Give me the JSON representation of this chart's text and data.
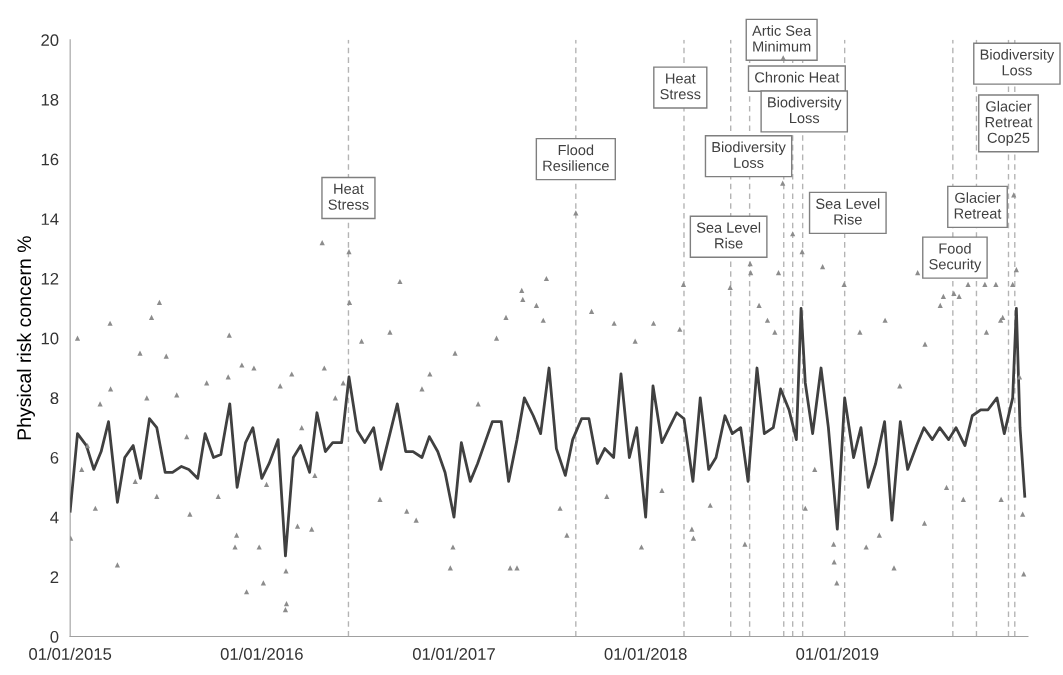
{
  "chart_data": {
    "type": "line",
    "ylabel": "Physical risk concern %",
    "xlim": [
      "2015-01-01",
      "2019-12-30"
    ],
    "xticks": [
      {
        "value": "2015-01-01",
        "label": "01/01/2015"
      },
      {
        "value": "2016-01-01",
        "label": "01/01/2016"
      },
      {
        "value": "2017-01-01",
        "label": "01/01/2017"
      },
      {
        "value": "2018-01-01",
        "label": "01/01/2018"
      },
      {
        "value": "2019-01-01",
        "label": "01/01/2019"
      }
    ],
    "ylim": [
      0,
      20
    ],
    "yticks": [
      0,
      2,
      4,
      6,
      8,
      10,
      12,
      14,
      16,
      18,
      20
    ],
    "grid": false,
    "legend": false,
    "series": [
      {
        "type": "scatter",
        "marker": "triangle",
        "color": "#8c8c8c",
        "x": [
          "2015-01-02",
          "2015-01-15",
          "2015-03-18",
          "2015-04-01",
          "2015-06-05",
          "2015-06-20",
          "2015-07-03",
          "2015-05-14",
          "2015-02-18",
          "2015-08-17",
          "2015-09-18",
          "2015-10-31",
          "2015-10-29",
          "2015-11-24",
          "2015-12-17",
          "2015-11-11",
          "2015-11-14",
          "2015-12-03",
          "2015-12-27",
          "2016-01-04",
          "2016-02-16",
          "2016-02-15",
          "2016-02-17",
          "2016-02-27",
          "2016-03-09",
          "2016-04-05",
          "2016-04-29",
          "2016-06-04",
          "2016-06-16",
          "2016-04-25",
          "2016-06-15",
          "2016-09-20",
          "2017-05-10",
          "2017-05-12",
          "2017-06-07",
          "2017-06-26",
          "2017-08-21",
          "2016-09-01",
          "2016-07-09",
          "2016-10-21",
          "2016-12-25",
          "2016-12-30",
          "2017-04-18",
          "2017-05-01",
          "2017-04-10",
          "2017-06-20",
          "2017-08-04",
          "2017-09-20",
          "2017-11-02",
          "2017-12-24",
          "2018-01-16",
          "2018-03-07",
          "2018-03-14",
          "2018-03-30",
          "2018-04-02",
          "2016-11-01",
          "2017-01-03",
          "2017-03-23",
          "2018-06-11",
          "2018-08-05",
          "2018-08-21",
          "2018-07-09",
          "2018-09-04",
          "2018-09-11",
          "2018-09-19",
          "2018-09-20",
          "2018-10-08",
          "2018-10-26",
          "2018-07-19",
          "2018-07-20",
          "2018-12-04",
          "2019-01-14",
          "2019-06-03",
          "2019-08-11",
          "2019-08-21",
          "2019-09-07",
          "2019-10-09",
          "2019-10-30",
          "2019-12-03",
          "2019-12-08",
          "2019-12-01",
          "2018-12-31",
          "2018-12-26",
          "2018-12-25",
          "2019-02-25",
          "2019-04-19",
          "2019-03-22",
          "2019-06-16",
          "2019-12-22",
          "2019-12-20",
          "2019-04-02",
          "2019-02-13",
          "2019-07-16",
          "2019-07-22",
          "2019-11-08",
          "2019-11-12",
          "2019-10-12",
          "2019-12-14",
          "2019-06-17",
          "2015-01-23",
          "2015-02-03",
          "2015-02-27",
          "2015-03-19",
          "2015-05-05",
          "2015-05-27",
          "2015-06-15",
          "2015-07-23",
          "2015-08-11",
          "2015-10-10",
          "2016-01-10",
          "2016-02-05",
          "2016-03-17",
          "2016-04-11",
          "2016-05-20",
          "2016-08-13",
          "2016-11-16",
          "2016-10-03",
          "2017-02-16",
          "2017-07-22",
          "2017-10-19",
          "2017-12-12",
          "2018-02-01",
          "2018-05-04",
          "2018-11-01",
          "2018-11-19",
          "2019-04-30",
          "2019-07-28",
          "2019-08-29",
          "2019-11-09"
        ],
        "values": [
          3.3,
          10.0,
          10.5,
          2.4,
          10.7,
          11.2,
          9.4,
          9.5,
          4.3,
          4.1,
          8.5,
          10.1,
          8.7,
          9.1,
          9.0,
          3.0,
          3.4,
          1.5,
          3.0,
          1.8,
          2.2,
          0.9,
          1.1,
          8.8,
          3.7,
          3.6,
          9.0,
          8.5,
          11.2,
          13.2,
          12.9,
          11.9,
          11.6,
          11.3,
          11.1,
          12.0,
          14.2,
          10.2,
          9.9,
          3.9,
          2.3,
          3.0,
          2.3,
          2.3,
          10.7,
          10.6,
          3.4,
          10.9,
          10.5,
          3.0,
          10.5,
          10.3,
          11.8,
          3.6,
          3.3,
          8.3,
          9.5,
          10.0,
          11.7,
          11.1,
          10.6,
          3.1,
          10.2,
          12.2,
          15.2,
          19.4,
          13.5,
          12.9,
          12.5,
          12.2,
          12.4,
          11.8,
          12.2,
          11.5,
          11.4,
          11.8,
          11.8,
          11.8,
          14.8,
          12.3,
          11.8,
          1.8,
          2.5,
          3.1,
          3.0,
          2.3,
          3.4,
          3.8,
          2.1,
          4.1,
          10.6,
          10.2,
          11.1,
          11.4,
          10.6,
          10.7,
          10.2,
          8.7,
          9.8,
          5.6,
          6.4,
          7.8,
          8.3,
          5.2,
          8.0,
          4.7,
          8.1,
          6.7,
          4.7,
          5.1,
          8.4,
          7.0,
          5.4,
          8.0,
          4.6,
          8.8,
          4.2,
          7.8,
          4.3,
          4.7,
          9.9,
          4.9,
          4.4,
          4.3,
          5.6,
          8.4,
          5.0,
          4.6,
          4.6
        ]
      },
      {
        "marker": "none",
        "line_style": "solid",
        "color": "#404040",
        "x": [
          "2015-01-01",
          "2015-01-15",
          "2015-02-01",
          "2015-02-15",
          "2015-03-01",
          "2015-03-15",
          "2015-04-01",
          "2015-04-15",
          "2015-05-01",
          "2015-05-15",
          "2015-06-01",
          "2015-06-15",
          "2015-07-01",
          "2015-07-15",
          "2015-08-01",
          "2015-08-15",
          "2015-09-01",
          "2015-09-15",
          "2015-10-01",
          "2015-10-15",
          "2015-11-01",
          "2015-11-15",
          "2015-12-01",
          "2015-12-15",
          "2016-01-01",
          "2016-01-15",
          "2016-02-01",
          "2016-02-15",
          "2016-03-01",
          "2016-03-15",
          "2016-04-01",
          "2016-04-15",
          "2016-05-01",
          "2016-05-15",
          "2016-06-01",
          "2016-06-15",
          "2016-07-01",
          "2016-07-15",
          "2016-08-01",
          "2016-08-15",
          "2016-09-01",
          "2016-09-15",
          "2016-10-01",
          "2016-10-15",
          "2016-11-01",
          "2016-11-15",
          "2016-12-01",
          "2016-12-15",
          "2017-01-01",
          "2017-01-15",
          "2017-02-01",
          "2017-02-15",
          "2017-03-01",
          "2017-03-15",
          "2017-04-01",
          "2017-04-15",
          "2017-05-01",
          "2017-05-15",
          "2017-06-01",
          "2017-06-15",
          "2017-07-01",
          "2017-07-15",
          "2017-08-01",
          "2017-08-15",
          "2017-09-01",
          "2017-09-15",
          "2017-10-01",
          "2017-10-15",
          "2017-11-01",
          "2017-11-15",
          "2017-12-01",
          "2017-12-15",
          "2018-01-01",
          "2018-01-15",
          "2018-02-01",
          "2018-02-15",
          "2018-03-01",
          "2018-03-15",
          "2018-04-01",
          "2018-04-15",
          "2018-05-01",
          "2018-05-15",
          "2018-06-01",
          "2018-06-15",
          "2018-07-01",
          "2018-07-15",
          "2018-08-01",
          "2018-08-15",
          "2018-09-01",
          "2018-09-15",
          "2018-10-01",
          "2018-10-15",
          "2018-10-24",
          "2018-11-01",
          "2018-11-15",
          "2018-12-01",
          "2018-12-15",
          "2019-01-01",
          "2019-01-15",
          "2019-02-01",
          "2019-02-15",
          "2019-03-01",
          "2019-03-15",
          "2019-04-01",
          "2019-04-15",
          "2019-05-01",
          "2019-05-15",
          "2019-06-01",
          "2019-06-15",
          "2019-07-01",
          "2019-07-15",
          "2019-08-01",
          "2019-08-15",
          "2019-09-01",
          "2019-09-15",
          "2019-10-01",
          "2019-10-15",
          "2019-11-01",
          "2019-11-15",
          "2019-12-01",
          "2019-12-08",
          "2019-12-15",
          "2019-12-24"
        ],
        "values": [
          4.2,
          6.8,
          6.4,
          5.6,
          6.2,
          7.2,
          4.5,
          6.0,
          6.4,
          5.3,
          7.3,
          7.0,
          5.5,
          5.5,
          5.7,
          5.6,
          5.3,
          6.8,
          6.0,
          6.1,
          7.8,
          5.0,
          6.5,
          7.0,
          5.3,
          5.8,
          6.6,
          2.7,
          6.0,
          6.4,
          5.5,
          7.5,
          6.2,
          6.5,
          6.5,
          8.7,
          6.9,
          6.5,
          7.0,
          5.6,
          6.8,
          7.8,
          6.2,
          6.2,
          6.0,
          6.7,
          6.2,
          5.5,
          4.0,
          6.5,
          5.2,
          5.8,
          6.5,
          7.2,
          7.2,
          5.2,
          6.6,
          8.0,
          7.4,
          6.8,
          9.0,
          6.3,
          5.4,
          6.6,
          7.3,
          7.3,
          5.8,
          6.3,
          6.0,
          8.8,
          6.0,
          7.0,
          4.0,
          8.4,
          6.5,
          7.0,
          7.5,
          7.3,
          5.2,
          8.0,
          5.6,
          6.0,
          7.4,
          6.8,
          7.0,
          5.2,
          9.0,
          6.8,
          7.0,
          8.3,
          7.6,
          6.6,
          11.0,
          8.5,
          6.8,
          9.0,
          7.0,
          3.6,
          8.0,
          6.0,
          7.0,
          5.0,
          5.8,
          7.2,
          3.9,
          7.2,
          5.6,
          6.4,
          7.0,
          6.6,
          7.0,
          6.6,
          7.0,
          6.4,
          7.4,
          7.6,
          7.6,
          8.0,
          6.8,
          8.0,
          11.0,
          7.0,
          4.7
        ]
      }
    ],
    "ref_lines": [
      {
        "axis": "x",
        "value": "2016-06-14",
        "color": "#b4b4b4",
        "line_style": "dashed"
      },
      {
        "axis": "x",
        "value": "2017-08-21",
        "color": "#b4b4b4",
        "line_style": "dashed"
      },
      {
        "axis": "x",
        "value": "2018-03-15",
        "color": "#b4b4b4",
        "line_style": "dashed"
      },
      {
        "axis": "x",
        "value": "2018-06-12",
        "color": "#b4b4b4",
        "line_style": "dashed"
      },
      {
        "axis": "x",
        "value": "2018-07-18",
        "color": "#b4b4b4",
        "line_style": "dashed"
      },
      {
        "axis": "x",
        "value": "2018-09-21",
        "color": "#b4b4b4",
        "line_style": "dashed"
      },
      {
        "axis": "x",
        "value": "2018-10-08",
        "color": "#b4b4b4",
        "line_style": "dashed"
      },
      {
        "axis": "x",
        "value": "2018-10-27",
        "color": "#b4b4b4",
        "line_style": "dashed"
      },
      {
        "axis": "x",
        "value": "2019-01-15",
        "color": "#b4b4b4",
        "line_style": "dashed"
      },
      {
        "axis": "x",
        "value": "2019-08-09",
        "color": "#b4b4b4",
        "line_style": "dashed"
      },
      {
        "axis": "x",
        "value": "2019-09-23",
        "color": "#b4b4b4",
        "line_style": "dashed"
      },
      {
        "axis": "x",
        "value": "2019-11-23",
        "color": "#b4b4b4",
        "line_style": "dashed"
      },
      {
        "axis": "x",
        "value": "2019-12-05",
        "color": "#b4b4b4",
        "line_style": "dashed"
      }
    ],
    "annotations": [
      {
        "text": "Heat\nStress",
        "x": "2016-06-14",
        "y": 14.7
      },
      {
        "text": "Flood\nResilience",
        "x": "2017-08-21",
        "y": 16.0
      },
      {
        "text": "Heat\nStress",
        "x": "2018-03-08",
        "y": 18.4
      },
      {
        "text": "Sea Level\nRise",
        "x": "2018-06-08",
        "y": 13.4
      },
      {
        "text": "Biodiversity\nLoss",
        "x": "2018-07-16",
        "y": 16.1
      },
      {
        "text": "Artic Sea\nMinimum",
        "x": "2018-09-17",
        "y": 20
      },
      {
        "text": "Chronic Heat",
        "x": "2018-10-16",
        "y": 18.7
      },
      {
        "text": "Biodiversity\nLoss",
        "x": "2018-10-30",
        "y": 17.6
      },
      {
        "text": "Sea Level\nRise",
        "x": "2019-01-21",
        "y": 14.2
      },
      {
        "text": "Food\nSecurity",
        "x": "2019-08-13",
        "y": 12.7
      },
      {
        "text": "Glacier\nRetreat",
        "x": "2019-09-25",
        "y": 14.4
      },
      {
        "text": "Glacier\nRetreat\nCop25",
        "x": "2019-11-23",
        "y": 17.2
      },
      {
        "text": "Biodiversity\nLoss",
        "x": "2019-12-09",
        "y": 19.2
      }
    ]
  }
}
